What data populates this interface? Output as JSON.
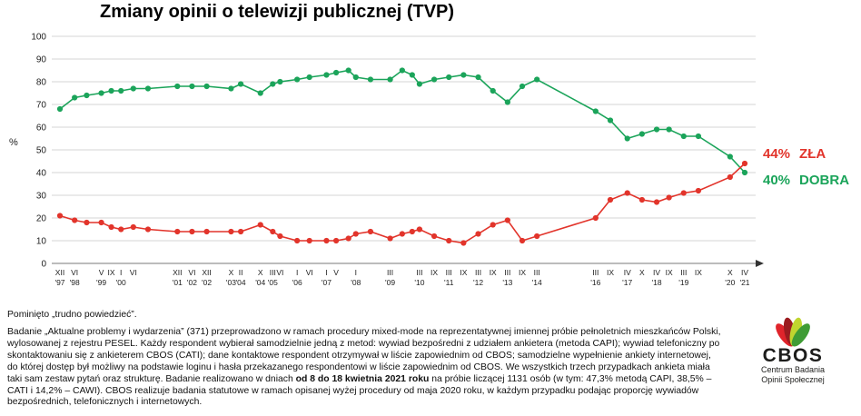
{
  "title": "Zmiany opinii o telewizji publicznej (TVP)",
  "chart_data": {
    "type": "line",
    "title": "Zmiany opinii o telewizji publicznej (TVP)",
    "xlabel": "",
    "ylabel": "%",
    "ylim": [
      0,
      100
    ],
    "grid": true,
    "x": [
      1997.92,
      1998.42,
      1998.83,
      1999.33,
      1999.67,
      2000.0,
      2000.42,
      2000.92,
      2001.92,
      2002.42,
      2002.92,
      2003.75,
      2004.08,
      2004.75,
      2005.17,
      2005.42,
      2006.0,
      2006.42,
      2007.0,
      2007.33,
      2007.75,
      2008.0,
      2008.5,
      2009.17,
      2009.58,
      2009.92,
      2010.17,
      2010.67,
      2011.17,
      2011.67,
      2012.17,
      2012.67,
      2013.17,
      2013.67,
      2014.17,
      2016.17,
      2016.67,
      2017.25,
      2017.75,
      2018.25,
      2018.67,
      2019.17,
      2019.67,
      2020.75,
      2021.25
    ],
    "ticks": [
      {
        "m": "XII",
        "y": "'97",
        "t": 1997.92
      },
      {
        "m": "VI",
        "y": "'98",
        "t": 1998.42
      },
      {
        "m": "V",
        "y": "'99",
        "t": 1999.33
      },
      {
        "m": "IX",
        "y": "",
        "t": 1999.67
      },
      {
        "m": "I",
        "y": "'00",
        "t": 2000.0
      },
      {
        "m": "VI",
        "y": "",
        "t": 2000.42
      },
      {
        "m": "XII",
        "y": "'01",
        "t": 2001.92
      },
      {
        "m": "VI",
        "y": "'02",
        "t": 2002.42
      },
      {
        "m": "XII",
        "y": "'02",
        "t": 2002.92
      },
      {
        "m": "X",
        "y": "'03",
        "t": 2003.75
      },
      {
        "m": "II",
        "y": "'04",
        "t": 2004.08
      },
      {
        "m": "X",
        "y": "'04",
        "t": 2004.75
      },
      {
        "m": "III",
        "y": "'05",
        "t": 2005.17
      },
      {
        "m": "VI",
        "y": "",
        "t": 2005.42
      },
      {
        "m": "I",
        "y": "'06",
        "t": 2006.0
      },
      {
        "m": "VI",
        "y": "",
        "t": 2006.42
      },
      {
        "m": "I",
        "y": "'07",
        "t": 2007.0
      },
      {
        "m": "V",
        "y": "",
        "t": 2007.33
      },
      {
        "m": "I",
        "y": "'08",
        "t": 2008.0
      },
      {
        "m": "III",
        "y": "'09",
        "t": 2009.17
      },
      {
        "m": "III",
        "y": "'10",
        "t": 2010.17
      },
      {
        "m": "IX",
        "y": "",
        "t": 2010.67
      },
      {
        "m": "III",
        "y": "'11",
        "t": 2011.17
      },
      {
        "m": "IX",
        "y": "",
        "t": 2011.67
      },
      {
        "m": "III",
        "y": "'12",
        "t": 2012.17
      },
      {
        "m": "IX",
        "y": "",
        "t": 2012.67
      },
      {
        "m": "III",
        "y": "'13",
        "t": 2013.17
      },
      {
        "m": "IX",
        "y": "",
        "t": 2013.67
      },
      {
        "m": "III",
        "y": "'14",
        "t": 2014.17
      },
      {
        "m": "III",
        "y": "'16",
        "t": 2016.17
      },
      {
        "m": "IX",
        "y": "",
        "t": 2016.67
      },
      {
        "m": "IV",
        "y": "'17",
        "t": 2017.25
      },
      {
        "m": "X",
        "y": "",
        "t": 2017.75
      },
      {
        "m": "IV",
        "y": "'18",
        "t": 2018.25
      },
      {
        "m": "IX",
        "y": "",
        "t": 2018.67
      },
      {
        "m": "III",
        "y": "'19",
        "t": 2019.17
      },
      {
        "m": "IX",
        "y": "",
        "t": 2019.67
      },
      {
        "m": "X",
        "y": "'20",
        "t": 2020.75
      },
      {
        "m": "IV",
        "y": "'21",
        "t": 2021.25
      }
    ],
    "series": [
      {
        "id": "dobra",
        "name": "DOBRA",
        "color": "#1ba45a",
        "end_value": "40%",
        "values": [
          68,
          73,
          74,
          75,
          76,
          76,
          77,
          77,
          78,
          78,
          78,
          77,
          79,
          75,
          79,
          80,
          81,
          82,
          83,
          84,
          85,
          82,
          81,
          81,
          85,
          83,
          79,
          81,
          82,
          83,
          82,
          76,
          71,
          78,
          81,
          67,
          63,
          55,
          57,
          59,
          59,
          56,
          56,
          47,
          40
        ]
      },
      {
        "id": "zla",
        "name": "ZŁA",
        "color": "#e2342b",
        "end_value": "44%",
        "values": [
          21,
          19,
          18,
          18,
          16,
          15,
          16,
          15,
          14,
          14,
          14,
          14,
          14,
          17,
          14,
          12,
          10,
          10,
          10,
          10,
          11,
          13,
          14,
          11,
          13,
          14,
          15,
          12,
          10,
          9,
          13,
          17,
          19,
          10,
          12,
          20,
          28,
          31,
          28,
          27,
          29,
          31,
          32,
          38,
          44
        ]
      }
    ],
    "legend_position": "right-end-labels"
  },
  "footer": {
    "note": "Pominięto „trudno powiedzieć”.",
    "methodology_part1": "Badanie „Aktualne problemy i wydarzenia” (371) przeprowadzono w ramach procedury mixed-mode na reprezentatywnej imiennej próbie pełnoletnich mieszkańców Polski, wylosowanej z rejestru PESEL. Każdy respondent wybierał samodzielnie jedną z metod:  wywiad bezpośredni z udziałem ankietera (metoda CAPI); wywiad telefoniczny po skontaktowaniu się z ankieterem CBOS (CATI); dane kontaktowe respondent otrzymywał w liście zapowiednim od CBOS; samodzielne wypełnienie ankiety internetowej, do której dostęp był możliwy na podstawie loginu i hasła przekazanego respondentowi w liście zapowiednim od CBOS. We wszystkich trzech przypadkach ankieta miała taki sam zestaw pytań oraz strukturę. Badanie realizowano w dniach ",
    "methodology_bold": "od 8 do 18 kwietnia 2021 roku",
    "methodology_part2": " na próbie liczącej 1131 osób (w tym: 47,3% metodą CAPI, 38,5% – CATI i 14,2% – CAWI). CBOS realizuje badania statutowe w ramach opisanej wyżej procedury od maja 2020 roku, w każdym przypadku podając proporcję  wywiadów bezpośrednich, telefonicznych i internetowych."
  },
  "logo": {
    "name": "CBOS",
    "subtitle_line1": "Centrum Badania",
    "subtitle_line2": "Opinii Społecznej",
    "petal_colors": [
      "#e0242b",
      "#9b1b1f",
      "#c0d52f",
      "#3f9c35"
    ]
  }
}
